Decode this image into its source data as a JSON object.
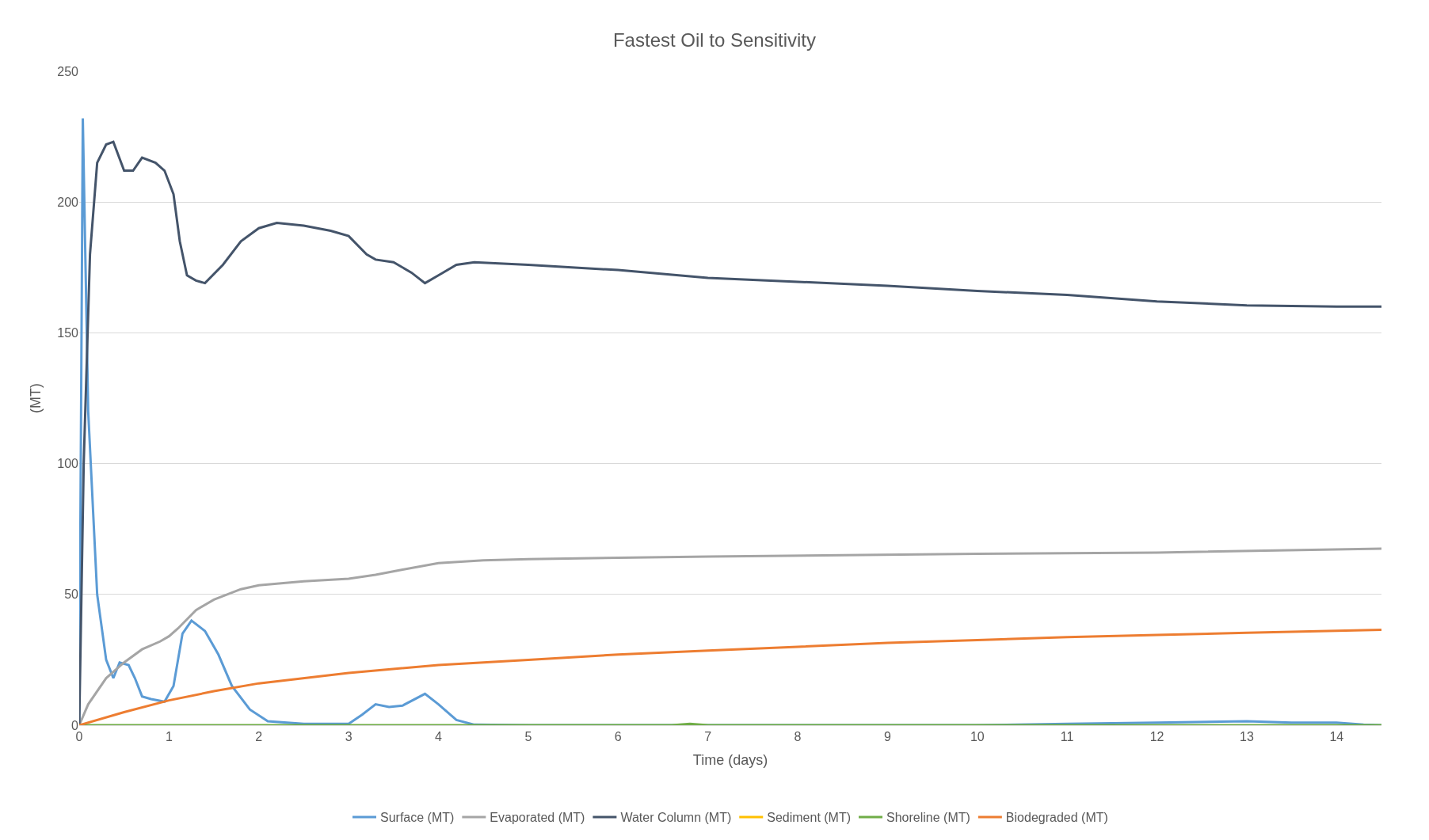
{
  "chart_data": {
    "type": "line",
    "title": "Fastest Oil to Sensitivity",
    "xlabel": "Time (days)",
    "ylabel": "(MT)",
    "xlim": [
      0,
      14.5
    ],
    "xticks": [
      0,
      1,
      2,
      3,
      4,
      5,
      6,
      7,
      8,
      9,
      10,
      11,
      12,
      13,
      14
    ],
    "ylim": [
      0,
      250
    ],
    "yticks": [
      0,
      50,
      100,
      150,
      200,
      250
    ],
    "grid": "y",
    "legend": "bottom",
    "marker": "none",
    "line_style": "solid",
    "series": [
      {
        "name": "Surface (MT)",
        "color": "#5b9bd5",
        "x": [
          0,
          0.04,
          0.1,
          0.2,
          0.3,
          0.38,
          0.45,
          0.55,
          0.62,
          0.7,
          0.8,
          0.95,
          1.05,
          1.15,
          1.25,
          1.4,
          1.55,
          1.7,
          1.9,
          2.1,
          2.5,
          3.0,
          3.15,
          3.3,
          3.45,
          3.6,
          3.85,
          4.0,
          4.2,
          4.4,
          5,
          10,
          11,
          12,
          13,
          13.5,
          14,
          14.3,
          14.5
        ],
        "values": [
          0,
          232,
          120,
          50,
          25,
          18,
          24,
          23,
          18,
          11,
          10,
          9,
          15,
          35,
          40,
          36,
          27,
          15,
          6,
          1.5,
          0.5,
          0.5,
          4,
          8,
          7,
          7.5,
          12,
          8,
          2,
          0.2,
          0,
          0,
          0.5,
          1,
          1.5,
          1,
          1,
          0.2,
          0
        ]
      },
      {
        "name": "Evaporated (MT)",
        "color": "#a5a5a5",
        "x": [
          0,
          0.1,
          0.3,
          0.5,
          0.7,
          0.9,
          1.0,
          1.1,
          1.3,
          1.5,
          1.8,
          2,
          2.5,
          3,
          3.3,
          3.6,
          4.0,
          4.5,
          5,
          7,
          10,
          12,
          14.5
        ],
        "values": [
          0,
          8,
          18,
          24,
          29,
          32,
          34,
          37,
          44,
          48,
          52,
          53.5,
          55,
          56,
          57.5,
          59.5,
          62,
          63,
          63.5,
          64.5,
          65.5,
          66,
          67.5
        ]
      },
      {
        "name": "Water Column (MT)",
        "color": "#44546a",
        "x": [
          0,
          0.05,
          0.12,
          0.2,
          0.3,
          0.38,
          0.5,
          0.6,
          0.7,
          0.85,
          0.95,
          1.05,
          1.12,
          1.2,
          1.3,
          1.4,
          1.6,
          1.8,
          2.0,
          2.2,
          2.5,
          2.8,
          3.0,
          3.2,
          3.3,
          3.5,
          3.7,
          3.85,
          4.0,
          4.2,
          4.4,
          5,
          6,
          7,
          8,
          9,
          10,
          11,
          12,
          13,
          14,
          14.5
        ],
        "values": [
          0,
          100,
          180,
          215,
          222,
          223,
          212,
          212,
          217,
          215,
          212,
          203,
          185,
          172,
          170,
          169,
          176,
          185,
          190,
          192,
          191,
          189,
          187,
          180,
          178,
          177,
          173,
          169,
          172,
          176,
          177,
          176,
          174,
          171,
          169.5,
          168,
          166,
          164.5,
          162,
          160.5,
          160,
          160
        ]
      },
      {
        "name": "Sediment (MT)",
        "color": "#ffc000",
        "values": [
          null
        ]
      },
      {
        "name": "Shoreline (MT)",
        "color": "#70ad47",
        "x": [
          0,
          6.6,
          6.8,
          7.0,
          14.5
        ],
        "values": [
          0,
          0,
          0.5,
          0,
          0
        ]
      },
      {
        "name": "Biodegraded (MT)",
        "color": "#ed7d31",
        "x": [
          0,
          0.5,
          1,
          1.5,
          2,
          3,
          4,
          5,
          6,
          7,
          8,
          9,
          10,
          11,
          12,
          13,
          14.5
        ],
        "values": [
          0,
          5,
          9.5,
          13,
          16,
          20,
          23,
          25,
          27,
          28.5,
          30,
          31.5,
          32.5,
          33.7,
          34.5,
          35.3,
          36.5
        ]
      }
    ]
  }
}
